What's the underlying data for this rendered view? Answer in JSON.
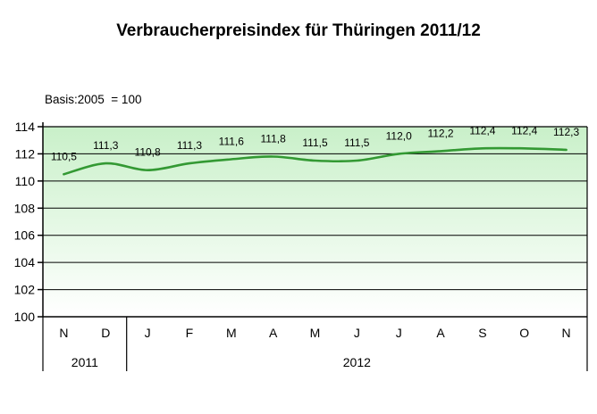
{
  "header": {
    "title": "Verbraucherpreisindex für Thüringen 2011/12",
    "subtitle": "Basis:2005  = 100"
  },
  "chart_data": {
    "type": "line",
    "title": "Verbraucherpreisindex für Thüringen 2011/12",
    "subtitle": "Basis:2005  = 100",
    "categories": [
      "N",
      "D",
      "J",
      "F",
      "M",
      "A",
      "M",
      "J",
      "J",
      "A",
      "S",
      "O",
      "N"
    ],
    "year_groups": [
      {
        "label": "2011",
        "from": 0,
        "to": 1
      },
      {
        "label": "2012",
        "from": 2,
        "to": 12
      }
    ],
    "series": [
      {
        "name": "Verbraucherpreisindex",
        "values": [
          110.5,
          111.3,
          110.8,
          111.3,
          111.6,
          111.8,
          111.5,
          111.5,
          112.0,
          112.2,
          112.4,
          112.4,
          112.3
        ],
        "data_labels": [
          "110,5",
          "111,3",
          "110,8",
          "111,3",
          "111,6",
          "111,8",
          "111,5",
          "111,5",
          "112,0",
          "112,2",
          "112,4",
          "112,4",
          "112,3"
        ]
      }
    ],
    "ylim": [
      100,
      114
    ],
    "ytick_step": 2,
    "ytick_labels": [
      "100",
      "102",
      "104",
      "106",
      "108",
      "110",
      "112",
      "114"
    ],
    "grid": true,
    "legend": "none",
    "smoothed": true,
    "colors": {
      "line": "#339933",
      "plot_bg_top": "#c9f0c9",
      "plot_bg_bottom": "#ffffff",
      "grid": "#000000",
      "axis": "#000000",
      "text": "#000000"
    }
  }
}
